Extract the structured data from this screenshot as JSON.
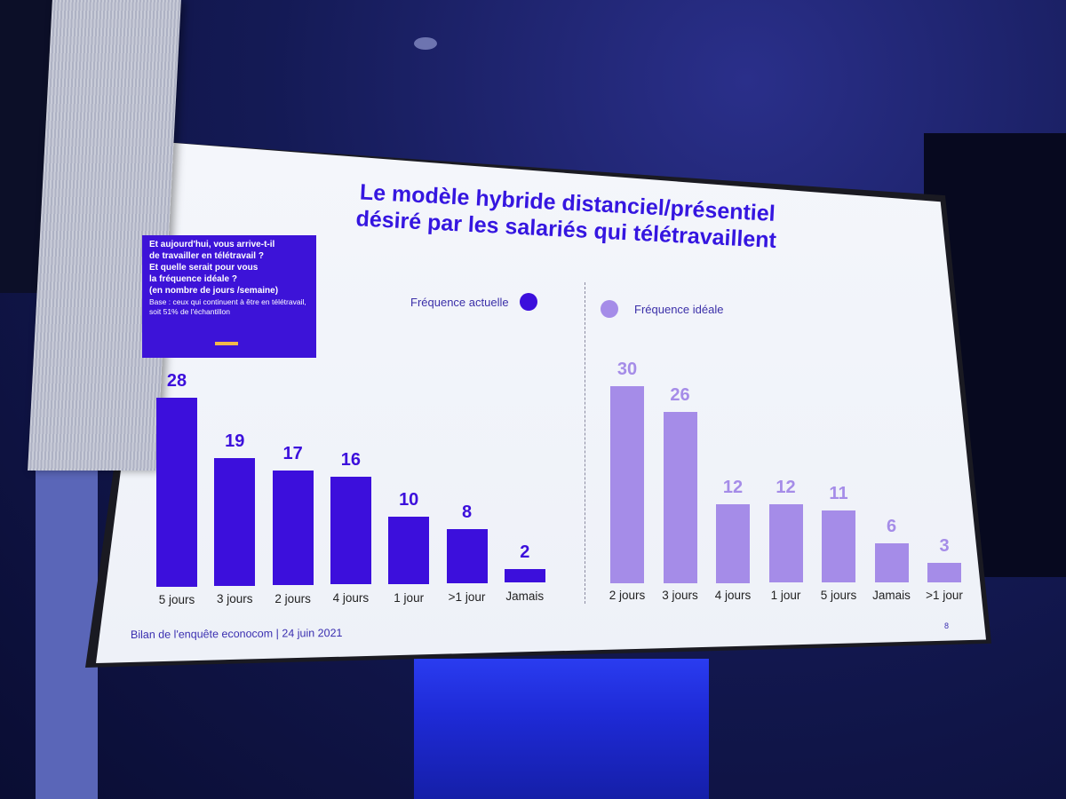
{
  "slide": {
    "title_line1": "Le modèle hybride distanciel/présentiel",
    "title_line2": "désiré par les salariés qui télétravaillent",
    "question_lines": [
      "Et aujourd'hui, vous arrive-t-il",
      "de travailler en télétravail ?",
      "Et quelle serait pour vous",
      "la fréquence idéale ?",
      "(en nombre de jours /semaine)"
    ],
    "base_text": "Base : ceux qui continuent à être en télétravail, soit 51% de l'échantillon",
    "footer": "Bilan de l'enquête econocom | 24 juin 2021",
    "page_number": "8"
  },
  "chart_data": [
    {
      "type": "bar",
      "legend": "Fréquence actuelle",
      "color": "#3c0fdc",
      "categories": [
        "5 jours",
        "3 jours",
        "2 jours",
        "4 jours",
        "1 jour",
        ">1 jour",
        "Jamais"
      ],
      "values": [
        28,
        19,
        17,
        16,
        10,
        8,
        2
      ]
    },
    {
      "type": "bar",
      "legend": "Fréquence idéale",
      "color": "#a58ce8",
      "categories": [
        "2 jours",
        "3 jours",
        "4 jours",
        "1 jour",
        "5 jours",
        "Jamais",
        ">1 jour"
      ],
      "values": [
        30,
        26,
        12,
        12,
        11,
        6,
        3
      ]
    }
  ]
}
